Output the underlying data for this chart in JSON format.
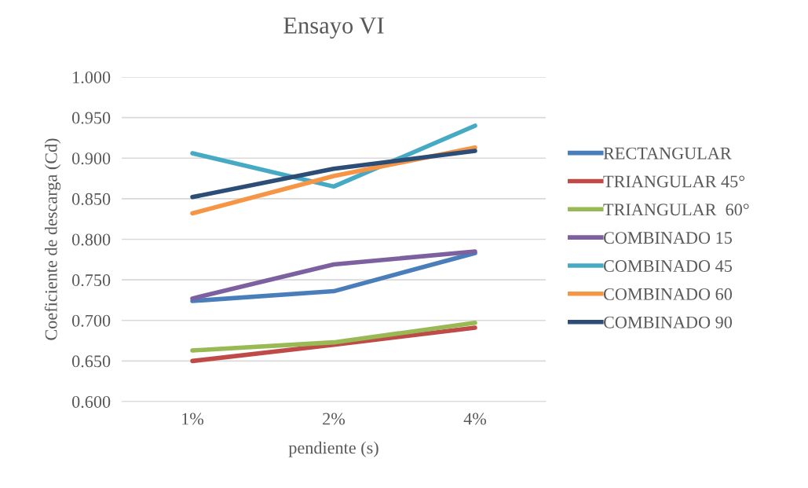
{
  "chart_data": {
    "type": "line",
    "title": "Ensayo VI",
    "xlabel": "pendiente (s)",
    "ylabel": "Coeficiente de descarga (Cd)",
    "categories": [
      "1%",
      "2%",
      "4%"
    ],
    "ylim": [
      0.6,
      1.0
    ],
    "yticks": [
      {
        "value": 0.6,
        "label": "0.600"
      },
      {
        "value": 0.65,
        "label": "0.650"
      },
      {
        "value": 0.7,
        "label": "0.700"
      },
      {
        "value": 0.75,
        "label": "0.750"
      },
      {
        "value": 0.8,
        "label": "0.800"
      },
      {
        "value": 0.85,
        "label": "0.850"
      },
      {
        "value": 0.9,
        "label": "0.900"
      },
      {
        "value": 0.95,
        "label": "0.950"
      },
      {
        "value": 1.0,
        "label": "1.000"
      }
    ],
    "grid": "y",
    "legend": "right",
    "marker": "none",
    "line_style": "solid",
    "series": [
      {
        "name": "RECTANGULAR",
        "color": "#4a7ebb",
        "values": [
          0.724,
          0.736,
          0.783
        ]
      },
      {
        "name": "TRIANGULAR 45°",
        "color": "#be4b48",
        "values": [
          0.65,
          0.67,
          0.691
        ]
      },
      {
        "name": "TRIANGULAR  60°",
        "color": "#98b954",
        "values": [
          0.663,
          0.673,
          0.697
        ]
      },
      {
        "name": "COMBINADO 15",
        "color": "#7d60a0",
        "values": [
          0.727,
          0.769,
          0.785
        ]
      },
      {
        "name": "COMBINADO 45",
        "color": "#46aac4",
        "values": [
          0.906,
          0.865,
          0.94
        ]
      },
      {
        "name": "COMBINADO 60",
        "color": "#f69546",
        "values": [
          0.832,
          0.878,
          0.913
        ]
      },
      {
        "name": "COMBINADO 90",
        "color": "#2c4d75",
        "values": [
          0.852,
          0.887,
          0.909
        ]
      }
    ]
  }
}
